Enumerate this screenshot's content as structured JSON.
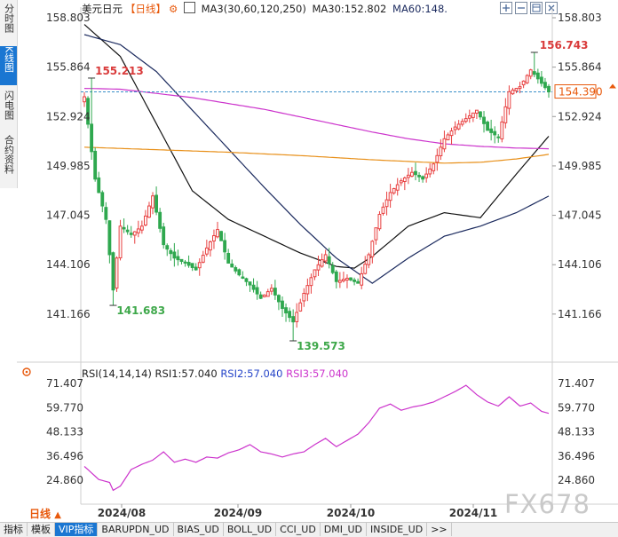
{
  "sidebar": {
    "tabs": [
      {
        "label": "分时图",
        "active": false
      },
      {
        "label": "K线图",
        "active": true
      },
      {
        "label": "闪电图",
        "active": false
      },
      {
        "label": "合约资料",
        "active": false
      }
    ]
  },
  "legend": {
    "symbol": "美元日元",
    "period": "【日线】",
    "ma_params": "MA3(30,60,120,250)",
    "ma30": "MA30:152.802",
    "ma60": "MA60:148."
  },
  "toolbar_icons": [
    "plus-icon",
    "minus-icon",
    "panel-icon",
    "close-icon"
  ],
  "rsi_legend": {
    "params": "RSI(14,14,14)",
    "rsi1": "RSI1:57.040",
    "rsi2": "RSI2:57.040",
    "rsi3": "RSI3:57.040"
  },
  "bottom": {
    "period_button": "日线",
    "tabs": [
      "指标",
      "模板",
      "VIP指标",
      "BARUPDN_UD",
      "BIAS_UD",
      "BOLL_UD",
      "CCI_UD",
      "DMI_UD",
      "INSIDE_UD",
      ">>"
    ],
    "active_tab": "VIP指标"
  },
  "watermark": "FX678",
  "colors": {
    "up": "#e84040",
    "down": "#2fa84f",
    "ma30": "#111111",
    "ma60": "#1b2a5e",
    "ma120": "#cc33cc",
    "ma250": "#e8901a",
    "last_price": "#e8590c",
    "hline": "#3a8fc8"
  },
  "chart_data": {
    "type": "candlestick",
    "title": "美元日元 日线",
    "x_labels": [
      "2024/08",
      "2024/09",
      "2024/10",
      "2024/11"
    ],
    "y_ticks": [
      "158.803",
      "155.864",
      "152.924",
      "149.985",
      "147.045",
      "144.106",
      "141.166"
    ],
    "ylim": [
      139.573,
      158.803
    ],
    "last_price": 154.39,
    "last_price_label": "154.390",
    "annotations": [
      {
        "text": "155.213",
        "value": 155.213,
        "x_index": 2
      },
      {
        "text": "141.683",
        "value": 141.683,
        "x_index": 8
      },
      {
        "text": "139.573",
        "value": 139.573,
        "x_index": 58
      },
      {
        "text": "156.743",
        "value": 156.743,
        "x_index": 125
      }
    ],
    "ohlc_anchors": [
      [
        0,
        154.1
      ],
      [
        3,
        149.2
      ],
      [
        6,
        146.8
      ],
      [
        8,
        142.6
      ],
      [
        10,
        146.4
      ],
      [
        13,
        145.9
      ],
      [
        16,
        146.4
      ],
      [
        19,
        148.2
      ],
      [
        22,
        145.3
      ],
      [
        25,
        144.5
      ],
      [
        28,
        144.2
      ],
      [
        31,
        143.8
      ],
      [
        34,
        145.1
      ],
      [
        37,
        146.2
      ],
      [
        40,
        144.2
      ],
      [
        43,
        143.5
      ],
      [
        46,
        142.9
      ],
      [
        49,
        142.1
      ],
      [
        52,
        142.7
      ],
      [
        55,
        141.5
      ],
      [
        58,
        140.7
      ],
      [
        61,
        142.4
      ],
      [
        64,
        143.8
      ],
      [
        67,
        144.7
      ],
      [
        70,
        143.1
      ],
      [
        73,
        143.3
      ],
      [
        76,
        143.0
      ],
      [
        79,
        144.7
      ],
      [
        82,
        147.1
      ],
      [
        85,
        148.4
      ],
      [
        88,
        149.1
      ],
      [
        91,
        149.6
      ],
      [
        94,
        149.2
      ],
      [
        97,
        150.1
      ],
      [
        100,
        151.6
      ],
      [
        103,
        152.3
      ],
      [
        106,
        152.8
      ],
      [
        109,
        153.3
      ],
      [
        112,
        152.1
      ],
      [
        115,
        151.7
      ],
      [
        118,
        154.4
      ],
      [
        121,
        154.7
      ],
      [
        124,
        155.7
      ],
      [
        127,
        154.9
      ],
      [
        129,
        154.39
      ]
    ],
    "series": [
      {
        "name": "MA30",
        "values": [
          [
            0,
            158.4
          ],
          [
            10,
            156.5
          ],
          [
            20,
            152.5
          ],
          [
            30,
            148.5
          ],
          [
            40,
            146.8
          ],
          [
            50,
            145.8
          ],
          [
            60,
            144.8
          ],
          [
            70,
            144.0
          ],
          [
            75,
            143.9
          ],
          [
            80,
            144.6
          ],
          [
            90,
            146.4
          ],
          [
            100,
            147.2
          ],
          [
            110,
            146.9
          ],
          [
            120,
            149.5
          ],
          [
            130,
            152.0
          ]
        ]
      },
      {
        "name": "MA60",
        "values": [
          [
            0,
            157.8
          ],
          [
            10,
            157.2
          ],
          [
            20,
            155.6
          ],
          [
            30,
            153.3
          ],
          [
            40,
            151.0
          ],
          [
            50,
            148.7
          ],
          [
            60,
            146.5
          ],
          [
            70,
            144.5
          ],
          [
            80,
            143.0
          ],
          [
            90,
            144.5
          ],
          [
            100,
            145.8
          ],
          [
            110,
            146.4
          ],
          [
            120,
            147.2
          ],
          [
            130,
            148.3
          ]
        ]
      },
      {
        "name": "MA120",
        "values": [
          [
            0,
            154.6
          ],
          [
            10,
            154.55
          ],
          [
            20,
            154.3
          ],
          [
            30,
            154.05
          ],
          [
            40,
            153.7
          ],
          [
            50,
            153.35
          ],
          [
            60,
            152.9
          ],
          [
            70,
            152.45
          ],
          [
            80,
            152.0
          ],
          [
            90,
            151.6
          ],
          [
            100,
            151.3
          ],
          [
            110,
            151.15
          ],
          [
            120,
            151.05
          ],
          [
            130,
            151.0
          ]
        ]
      },
      {
        "name": "MA250",
        "values": [
          [
            0,
            151.1
          ],
          [
            20,
            150.95
          ],
          [
            40,
            150.8
          ],
          [
            60,
            150.6
          ],
          [
            80,
            150.35
          ],
          [
            100,
            150.15
          ],
          [
            110,
            150.2
          ],
          [
            120,
            150.4
          ],
          [
            130,
            150.7
          ]
        ]
      }
    ],
    "candles_count": 130
  },
  "rsi_data": {
    "type": "line",
    "y_ticks": [
      "71.407",
      "59.770",
      "48.133",
      "36.496",
      "24.860"
    ],
    "ylim": [
      24.86,
      71.407
    ],
    "rsi_value": 57.04,
    "values": [
      [
        0,
        31.5
      ],
      [
        4,
        25.2
      ],
      [
        7,
        23.8
      ],
      [
        8,
        20.0
      ],
      [
        10,
        22.0
      ],
      [
        13,
        30.0
      ],
      [
        16,
        32.5
      ],
      [
        19,
        34.5
      ],
      [
        22,
        38.5
      ],
      [
        25,
        33.5
      ],
      [
        28,
        35.0
      ],
      [
        31,
        33.5
      ],
      [
        34,
        36.0
      ],
      [
        37,
        35.5
      ],
      [
        40,
        38.0
      ],
      [
        43,
        39.5
      ],
      [
        46,
        42.0
      ],
      [
        49,
        38.5
      ],
      [
        52,
        37.5
      ],
      [
        55,
        36.0
      ],
      [
        58,
        37.5
      ],
      [
        61,
        38.5
      ],
      [
        64,
        42.0
      ],
      [
        67,
        45.0
      ],
      [
        70,
        41.0
      ],
      [
        73,
        44.0
      ],
      [
        76,
        47.0
      ],
      [
        79,
        52.5
      ],
      [
        82,
        59.5
      ],
      [
        85,
        61.5
      ],
      [
        88,
        58.5
      ],
      [
        91,
        60.0
      ],
      [
        94,
        61.0
      ],
      [
        97,
        62.5
      ],
      [
        100,
        65.0
      ],
      [
        103,
        67.5
      ],
      [
        106,
        70.5
      ],
      [
        109,
        66.0
      ],
      [
        112,
        62.5
      ],
      [
        115,
        60.5
      ],
      [
        118,
        65.0
      ],
      [
        121,
        60.5
      ],
      [
        124,
        62.0
      ],
      [
        127,
        58.0
      ],
      [
        129,
        57.0
      ]
    ]
  }
}
